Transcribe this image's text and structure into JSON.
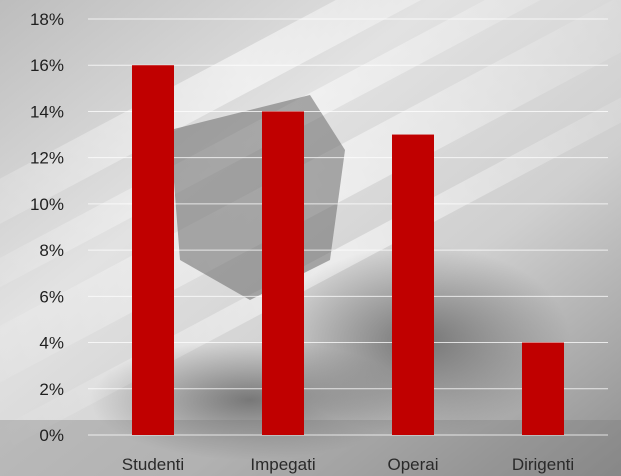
{
  "chart_data": {
    "type": "bar",
    "categories": [
      "Studenti",
      "Impegati",
      "Operai",
      "Dirigenti"
    ],
    "series": [
      {
        "values": [
          16,
          14,
          13,
          4
        ],
        "color": "#c00000"
      }
    ],
    "value_format": "percent",
    "ylim": [
      0,
      18
    ],
    "yticks": [
      "0%",
      "2%",
      "4%",
      "6%",
      "8%",
      "10%",
      "12%",
      "14%",
      "16%",
      "18%"
    ],
    "grid": true,
    "legend": "none",
    "background": "grayscale photo backdrop"
  }
}
